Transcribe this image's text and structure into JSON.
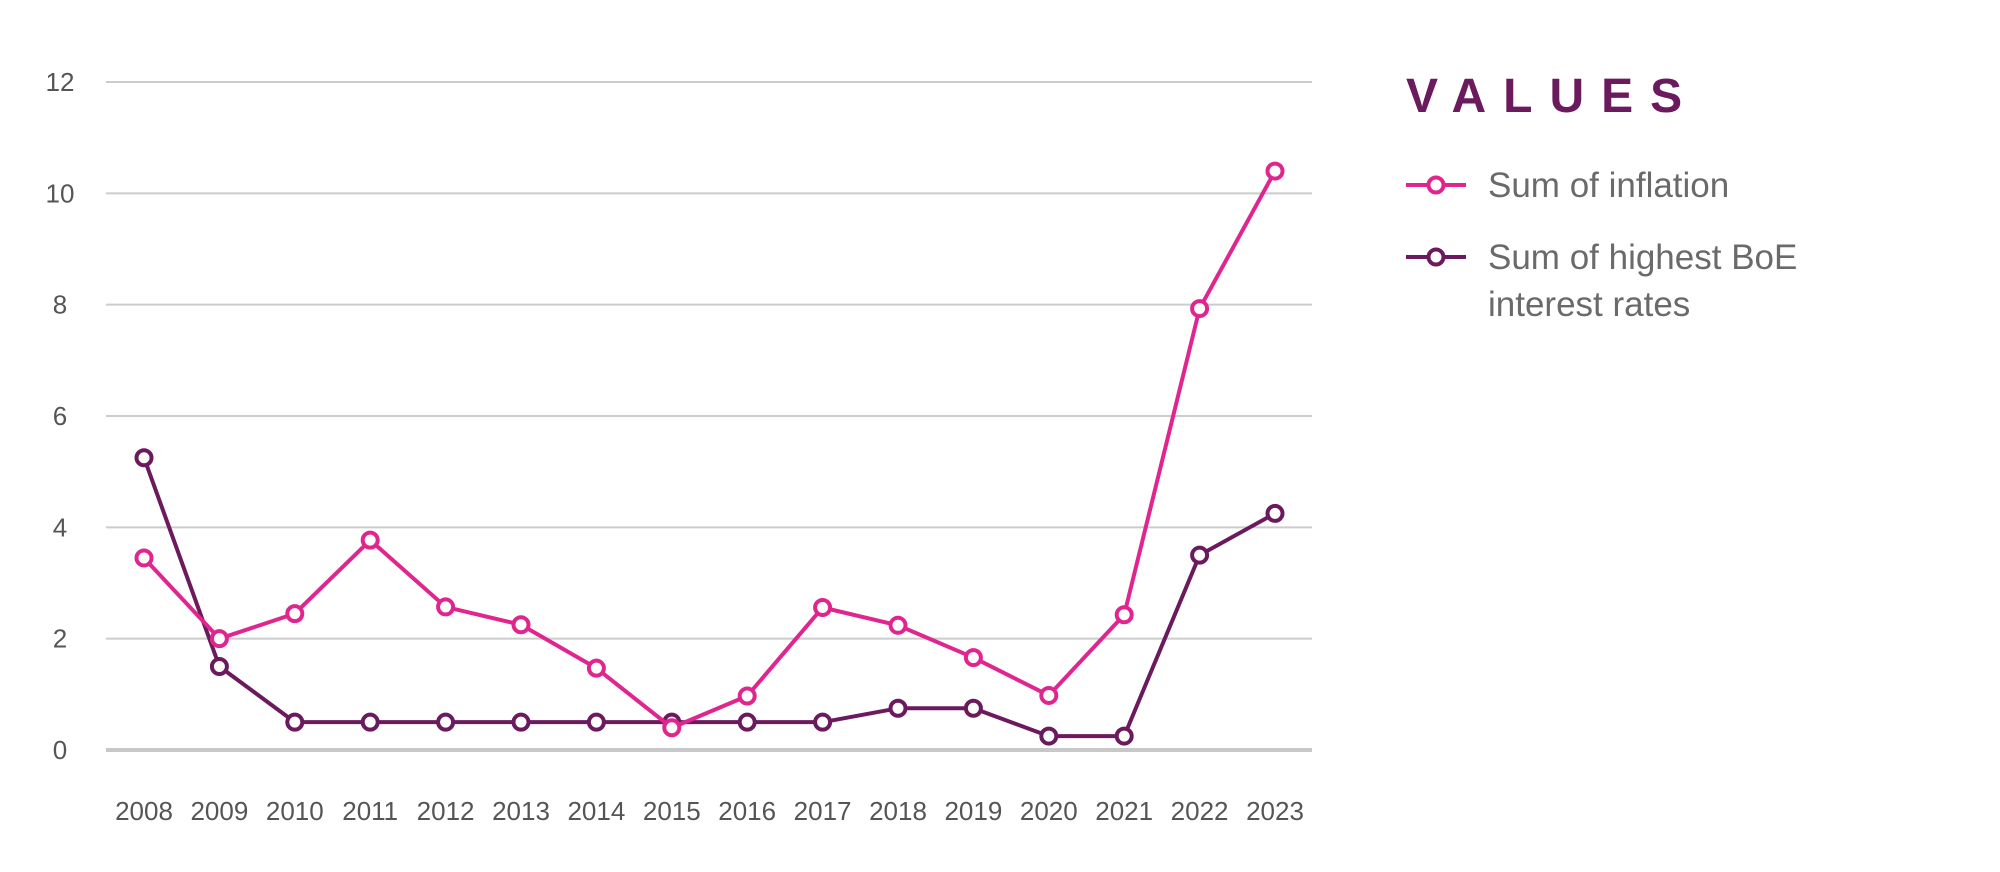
{
  "chart_data": {
    "type": "line",
    "categories": [
      "2008",
      "2009",
      "2010",
      "2011",
      "2012",
      "2013",
      "2014",
      "2015",
      "2016",
      "2017",
      "2018",
      "2019",
      "2020",
      "2021",
      "2022",
      "2023"
    ],
    "y_ticks": [
      "0",
      "2",
      "4",
      "6",
      "8",
      "10",
      "12"
    ],
    "ylim": [
      0,
      12
    ],
    "grid": true,
    "legend": {
      "title": "VALUES",
      "position": "right"
    },
    "series": [
      {
        "name": "Sum of inflation",
        "name_lines": [
          "Sum of inflation"
        ],
        "color": "#e0258f",
        "values": [
          3.45,
          2.0,
          2.45,
          3.77,
          2.57,
          2.25,
          1.47,
          0.4,
          0.97,
          2.56,
          2.24,
          1.66,
          0.98,
          2.43,
          7.93,
          10.4
        ]
      },
      {
        "name": "Sum of highest BoE interest rates",
        "name_lines": [
          "Sum of highest BoE",
          "interest rates"
        ],
        "color": "#6b1a5e",
        "values": [
          5.25,
          1.5,
          0.5,
          0.5,
          0.5,
          0.5,
          0.5,
          0.5,
          0.5,
          0.5,
          0.75,
          0.75,
          0.25,
          0.25,
          3.5,
          4.25
        ]
      }
    ],
    "colors": {
      "grid": "#cccccc",
      "axis": "#c8c8c8",
      "tick_text": "#555555"
    }
  }
}
